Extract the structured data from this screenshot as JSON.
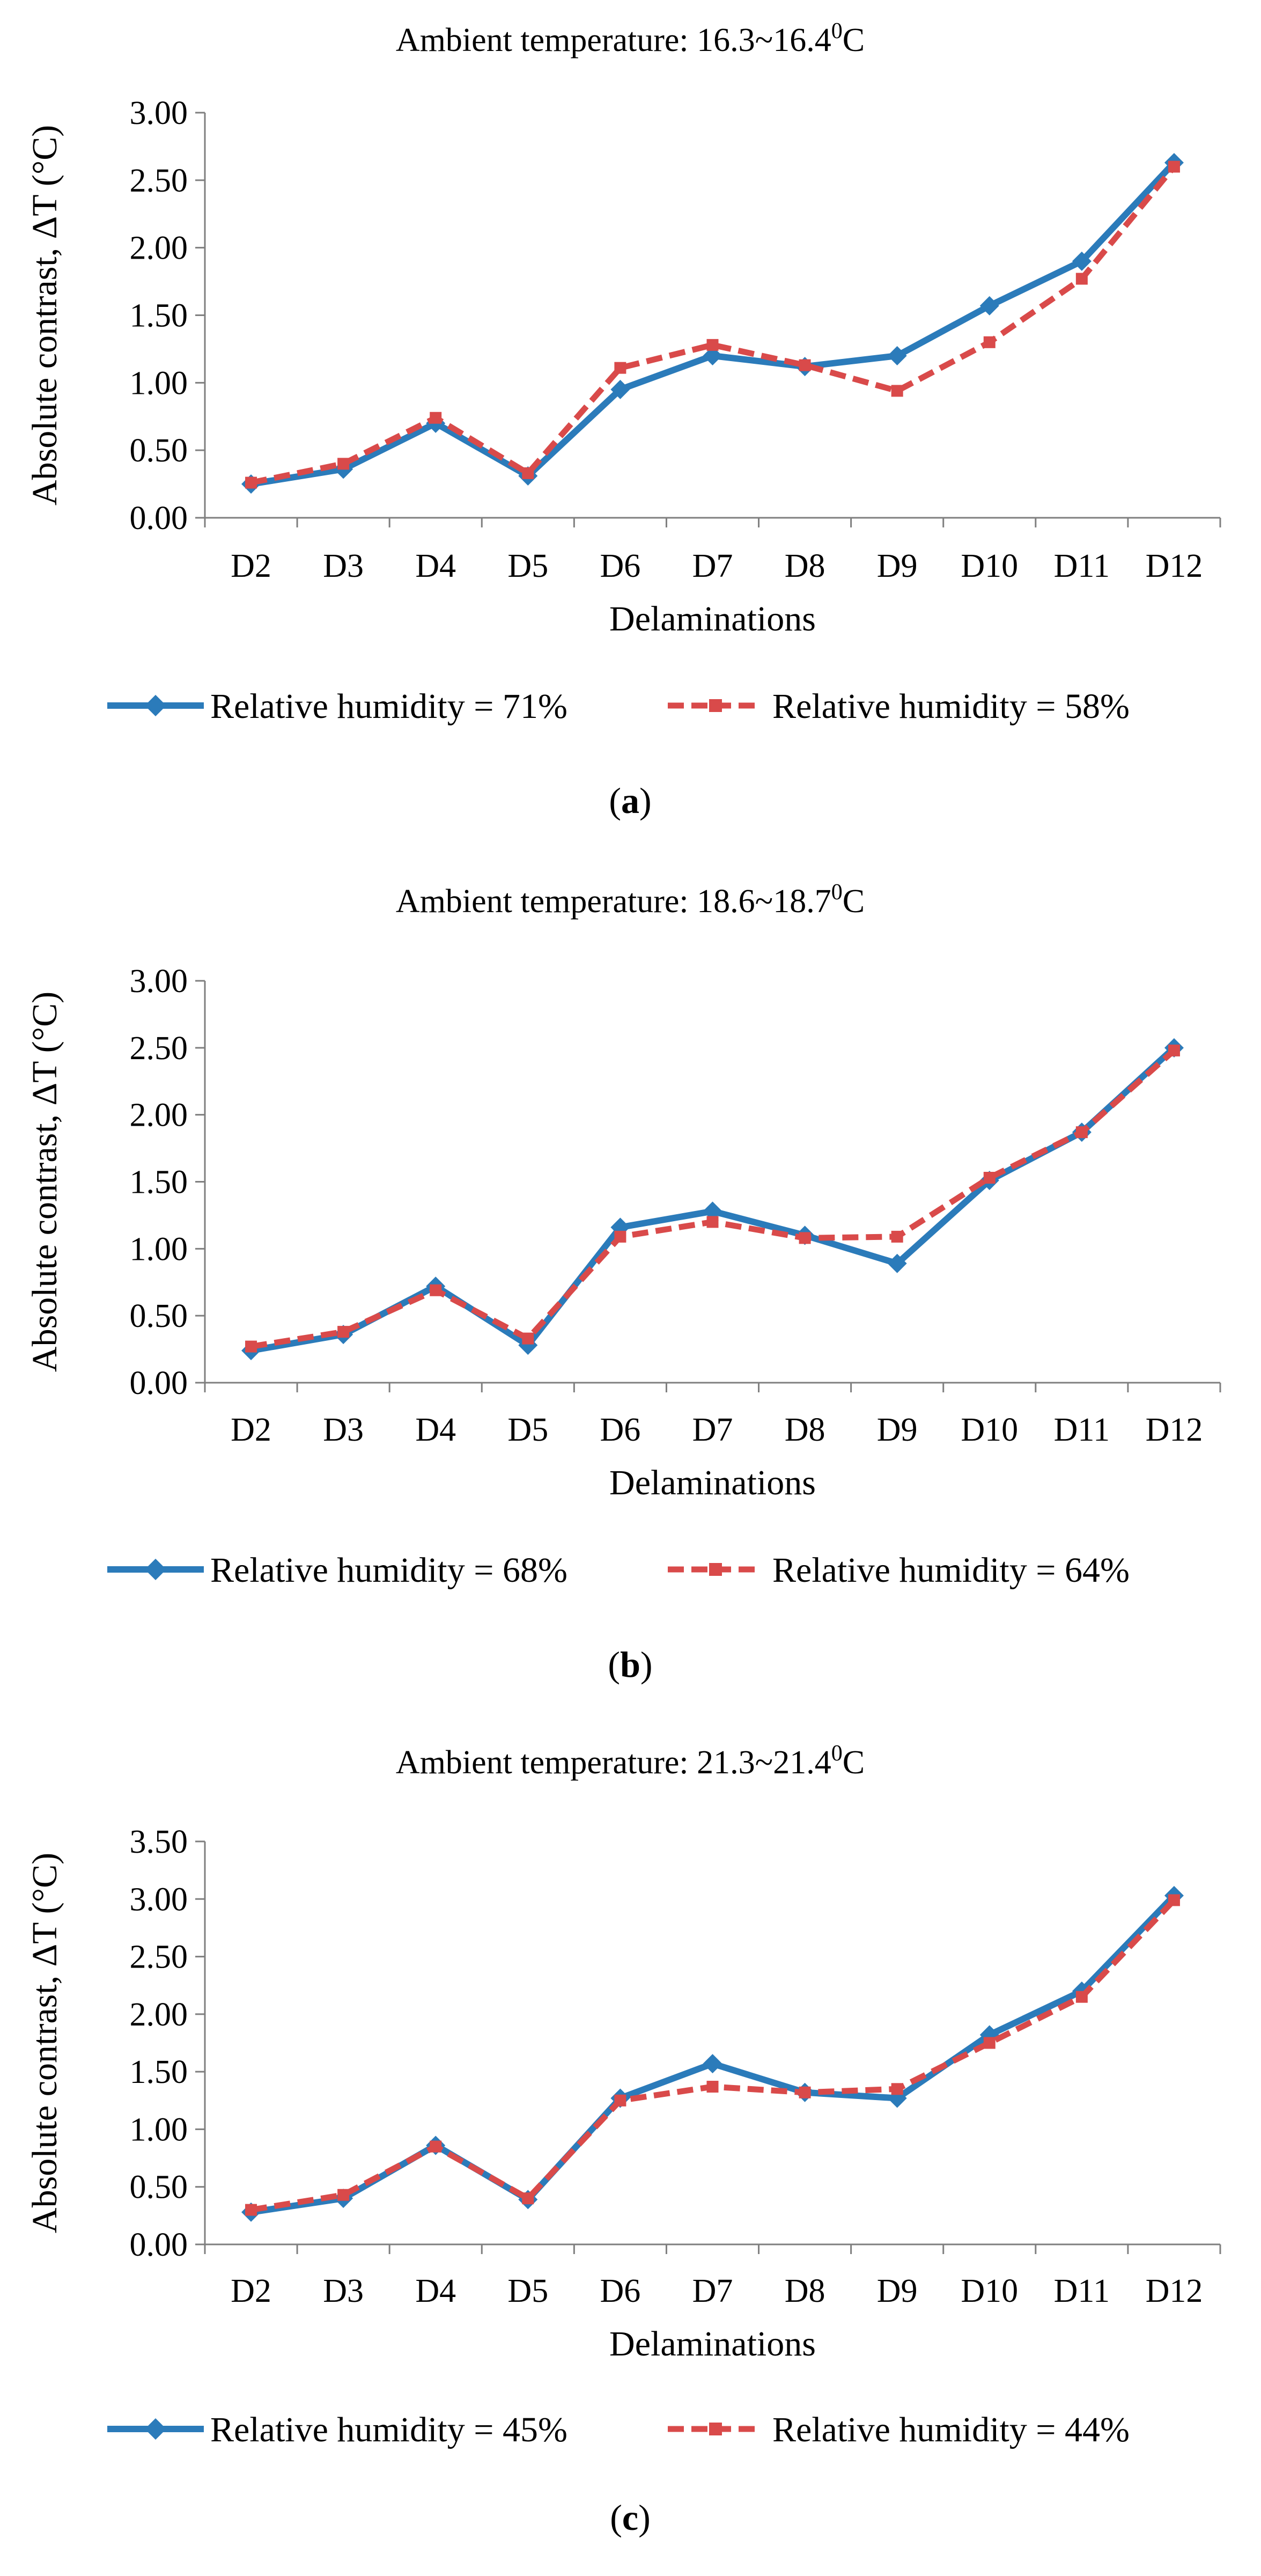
{
  "chart_data": [
    {
      "type": "line",
      "title_prefix": "Ambient temperature: 16.3~16.4",
      "title_sup": "0",
      "title_suffix": "C",
      "xlabel": "Delaminations",
      "ylabel": "Absolute contrast, ΔT (°C)",
      "categories": [
        "D2",
        "D3",
        "D4",
        "D5",
        "D6",
        "D7",
        "D8",
        "D9",
        "D10",
        "D11",
        "D12"
      ],
      "ylim": [
        0,
        3.0
      ],
      "yticks": [
        "0.00",
        "0.50",
        "1.00",
        "1.50",
        "2.00",
        "2.50",
        "3.00"
      ],
      "series": [
        {
          "name": "Relative humidity = 71%",
          "style": "solid",
          "values": [
            0.25,
            0.36,
            0.7,
            0.31,
            0.95,
            1.2,
            1.12,
            1.2,
            1.57,
            1.9,
            2.63
          ]
        },
        {
          "name": "Relative humidity = 58%",
          "style": "dashed",
          "values": [
            0.26,
            0.4,
            0.74,
            0.33,
            1.11,
            1.28,
            1.13,
            0.94,
            1.3,
            1.77,
            2.6
          ]
        }
      ],
      "caption_open": "(",
      "caption_letter": "a",
      "caption_close": ")"
    },
    {
      "type": "line",
      "title_prefix": "Ambient temperature: 18.6~18.7",
      "title_sup": "0",
      "title_suffix": "C",
      "xlabel": "Delaminations",
      "ylabel": "Absolute contrast, ΔT (°C)",
      "categories": [
        "D2",
        "D3",
        "D4",
        "D5",
        "D6",
        "D7",
        "D8",
        "D9",
        "D10",
        "D11",
        "D12"
      ],
      "ylim": [
        0,
        3.0
      ],
      "yticks": [
        "0.00",
        "0.50",
        "1.00",
        "1.50",
        "2.00",
        "2.50",
        "3.00"
      ],
      "series": [
        {
          "name": "Relative humidity = 68%",
          "style": "solid",
          "values": [
            0.24,
            0.36,
            0.72,
            0.28,
            1.16,
            1.28,
            1.1,
            0.89,
            1.51,
            1.87,
            2.5
          ]
        },
        {
          "name": "Relative humidity = 64%",
          "style": "dashed",
          "values": [
            0.27,
            0.38,
            0.69,
            0.33,
            1.09,
            1.2,
            1.08,
            1.09,
            1.53,
            1.87,
            2.48
          ]
        }
      ],
      "caption_open": "(",
      "caption_letter": "b",
      "caption_close": ")"
    },
    {
      "type": "line",
      "title_prefix": "Ambient temperature: 21.3~21.4",
      "title_sup": "0",
      "title_suffix": "C",
      "xlabel": "Delaminations",
      "ylabel": "Absolute contrast, ΔT (°C)",
      "categories": [
        "D2",
        "D3",
        "D4",
        "D5",
        "D6",
        "D7",
        "D8",
        "D9",
        "D10",
        "D11",
        "D12"
      ],
      "ylim": [
        0,
        3.5
      ],
      "yticks": [
        "0.00",
        "0.50",
        "1.00",
        "1.50",
        "2.00",
        "2.50",
        "3.00",
        "3.50"
      ],
      "series": [
        {
          "name": "Relative humidity = 45%",
          "style": "solid",
          "values": [
            0.28,
            0.4,
            0.86,
            0.39,
            1.27,
            1.57,
            1.32,
            1.27,
            1.82,
            2.2,
            3.03
          ]
        },
        {
          "name": "Relative humidity = 44%",
          "style": "dashed",
          "values": [
            0.3,
            0.43,
            0.85,
            0.4,
            1.25,
            1.37,
            1.32,
            1.35,
            1.75,
            2.15,
            2.99
          ]
        }
      ],
      "caption_open": "(",
      "caption_letter": "c",
      "caption_close": ")"
    }
  ],
  "colors": {
    "series_solid": "#2b7bba",
    "series_dashed": "#d94a4a",
    "axis": "#7f7f7f",
    "text": "#000000"
  }
}
